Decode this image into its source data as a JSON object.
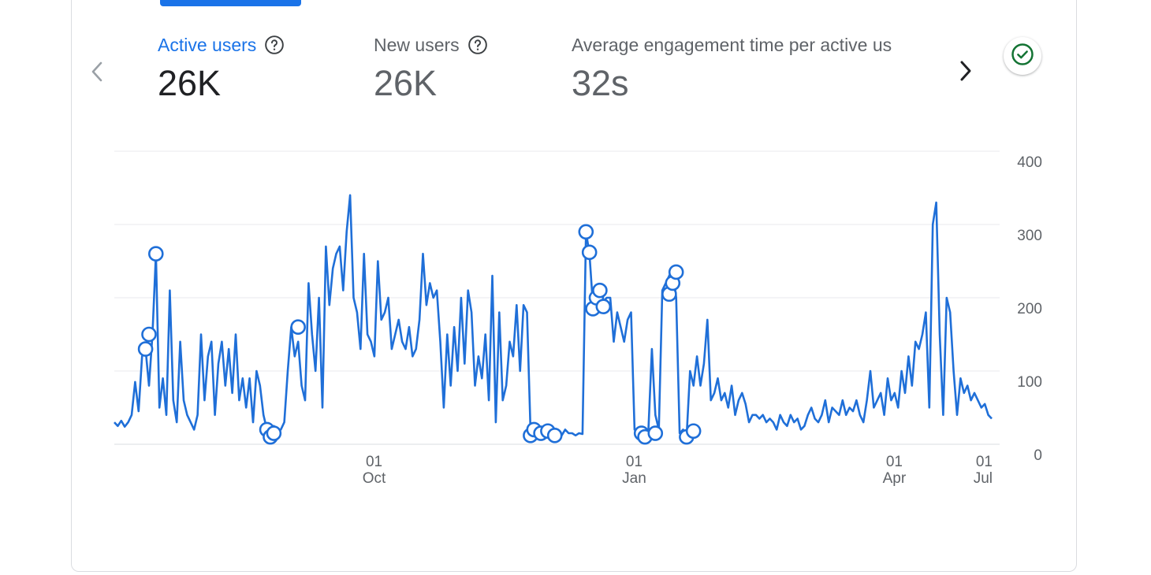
{
  "metrics": [
    {
      "label": "Active users",
      "value": "26K",
      "active": true,
      "has_help": true
    },
    {
      "label": "New users",
      "value": "26K",
      "active": false,
      "has_help": true
    },
    {
      "label": "Average engagement time per active us",
      "value": "32s",
      "active": false,
      "has_help": false
    }
  ],
  "icons": {
    "prev": "chevron-left-icon",
    "next": "chevron-right-icon",
    "help": "help-circle-icon",
    "status": "check-circle-icon"
  },
  "colors": {
    "accent": "#1a73e8",
    "line": "#1f6fd8",
    "status_green": "#137333",
    "grid": "#e8eaed",
    "muted": "#5f6368"
  },
  "chart_data": {
    "type": "line",
    "series": [
      {
        "name": "",
        "values": [
          30,
          25,
          32,
          24,
          30,
          40,
          85,
          45,
          120,
          130,
          80,
          150,
          260,
          50,
          90,
          40,
          210,
          60,
          30,
          140,
          60,
          40,
          30,
          20,
          40,
          150,
          60,
          120,
          140,
          40,
          110,
          140,
          80,
          130,
          70,
          150,
          60,
          90,
          50,
          90,
          30,
          100,
          80,
          40,
          20,
          10,
          25,
          15,
          20,
          30,
          100,
          160,
          120,
          140,
          80,
          60,
          220,
          150,
          100,
          200,
          50,
          270,
          190,
          240,
          260,
          270,
          210,
          290,
          340,
          200,
          180,
          130,
          260,
          150,
          140,
          120,
          250,
          170,
          180,
          200,
          130,
          150,
          170,
          140,
          130,
          160,
          120,
          130,
          170,
          260,
          190,
          220,
          200,
          210,
          140,
          50,
          150,
          80,
          160,
          100,
          200,
          110,
          210,
          180,
          80,
          120,
          90,
          150,
          60,
          230,
          30,
          180,
          60,
          80,
          140,
          120,
          190,
          100,
          190,
          180,
          20,
          25,
          15,
          20,
          20,
          15,
          15,
          15,
          12,
          12,
          20,
          15,
          15,
          12,
          15,
          14,
          290,
          260,
          190,
          185,
          210,
          195,
          200,
          200,
          140,
          180,
          160,
          140,
          170,
          180,
          20,
          15,
          15,
          18,
          20,
          130,
          40,
          20,
          210,
          220,
          230,
          240,
          200,
          15,
          20,
          10,
          100,
          80,
          120,
          80,
          110,
          170,
          60,
          70,
          90,
          60,
          70,
          50,
          80,
          40,
          60,
          70,
          55,
          30,
          40,
          40,
          35,
          40,
          30,
          35,
          30,
          20,
          40,
          30,
          25,
          40,
          30,
          35,
          20,
          25,
          40,
          50,
          35,
          30,
          40,
          60,
          30,
          50,
          45,
          40,
          60,
          40,
          50,
          45,
          60,
          40,
          30,
          60,
          100,
          50,
          60,
          70,
          40,
          90,
          60,
          70,
          50,
          100,
          70,
          120,
          80,
          140,
          130,
          150,
          180,
          50,
          300,
          330,
          150,
          40,
          200,
          180,
          100,
          40,
          90,
          70,
          80,
          60,
          70,
          60,
          50,
          55,
          40,
          35
        ]
      }
    ],
    "highlight_points": [
      {
        "index": 9,
        "value": 130
      },
      {
        "index": 10,
        "value": 150
      },
      {
        "index": 12,
        "value": 260
      },
      {
        "index": 44,
        "value": 20
      },
      {
        "index": 45,
        "value": 10
      },
      {
        "index": 46,
        "value": 15
      },
      {
        "index": 53,
        "value": 160
      },
      {
        "index": 120,
        "value": 12
      },
      {
        "index": 121,
        "value": 20
      },
      {
        "index": 123,
        "value": 15
      },
      {
        "index": 125,
        "value": 18
      },
      {
        "index": 127,
        "value": 12
      },
      {
        "index": 136,
        "value": 290
      },
      {
        "index": 137,
        "value": 262
      },
      {
        "index": 138,
        "value": 185
      },
      {
        "index": 139,
        "value": 200
      },
      {
        "index": 140,
        "value": 210
      },
      {
        "index": 141,
        "value": 188
      },
      {
        "index": 152,
        "value": 15
      },
      {
        "index": 153,
        "value": 10
      },
      {
        "index": 156,
        "value": 15
      },
      {
        "index": 160,
        "value": 205
      },
      {
        "index": 161,
        "value": 220
      },
      {
        "index": 162,
        "value": 235
      },
      {
        "index": 165,
        "value": 10
      },
      {
        "index": 167,
        "value": 18
      }
    ],
    "x_ticks": [
      {
        "index": 74,
        "day": "01",
        "month": "Oct"
      },
      {
        "index": 149,
        "day": "01",
        "month": "Jan"
      },
      {
        "index": 224,
        "day": "01",
        "month": "Apr"
      },
      {
        "index": 298,
        "day": "01",
        "month": "Jul"
      }
    ],
    "y_ticks": [
      400,
      300,
      200,
      100,
      0
    ],
    "ylim": [
      0,
      400
    ],
    "grid": true,
    "title": "",
    "xlabel": "",
    "ylabel": ""
  }
}
